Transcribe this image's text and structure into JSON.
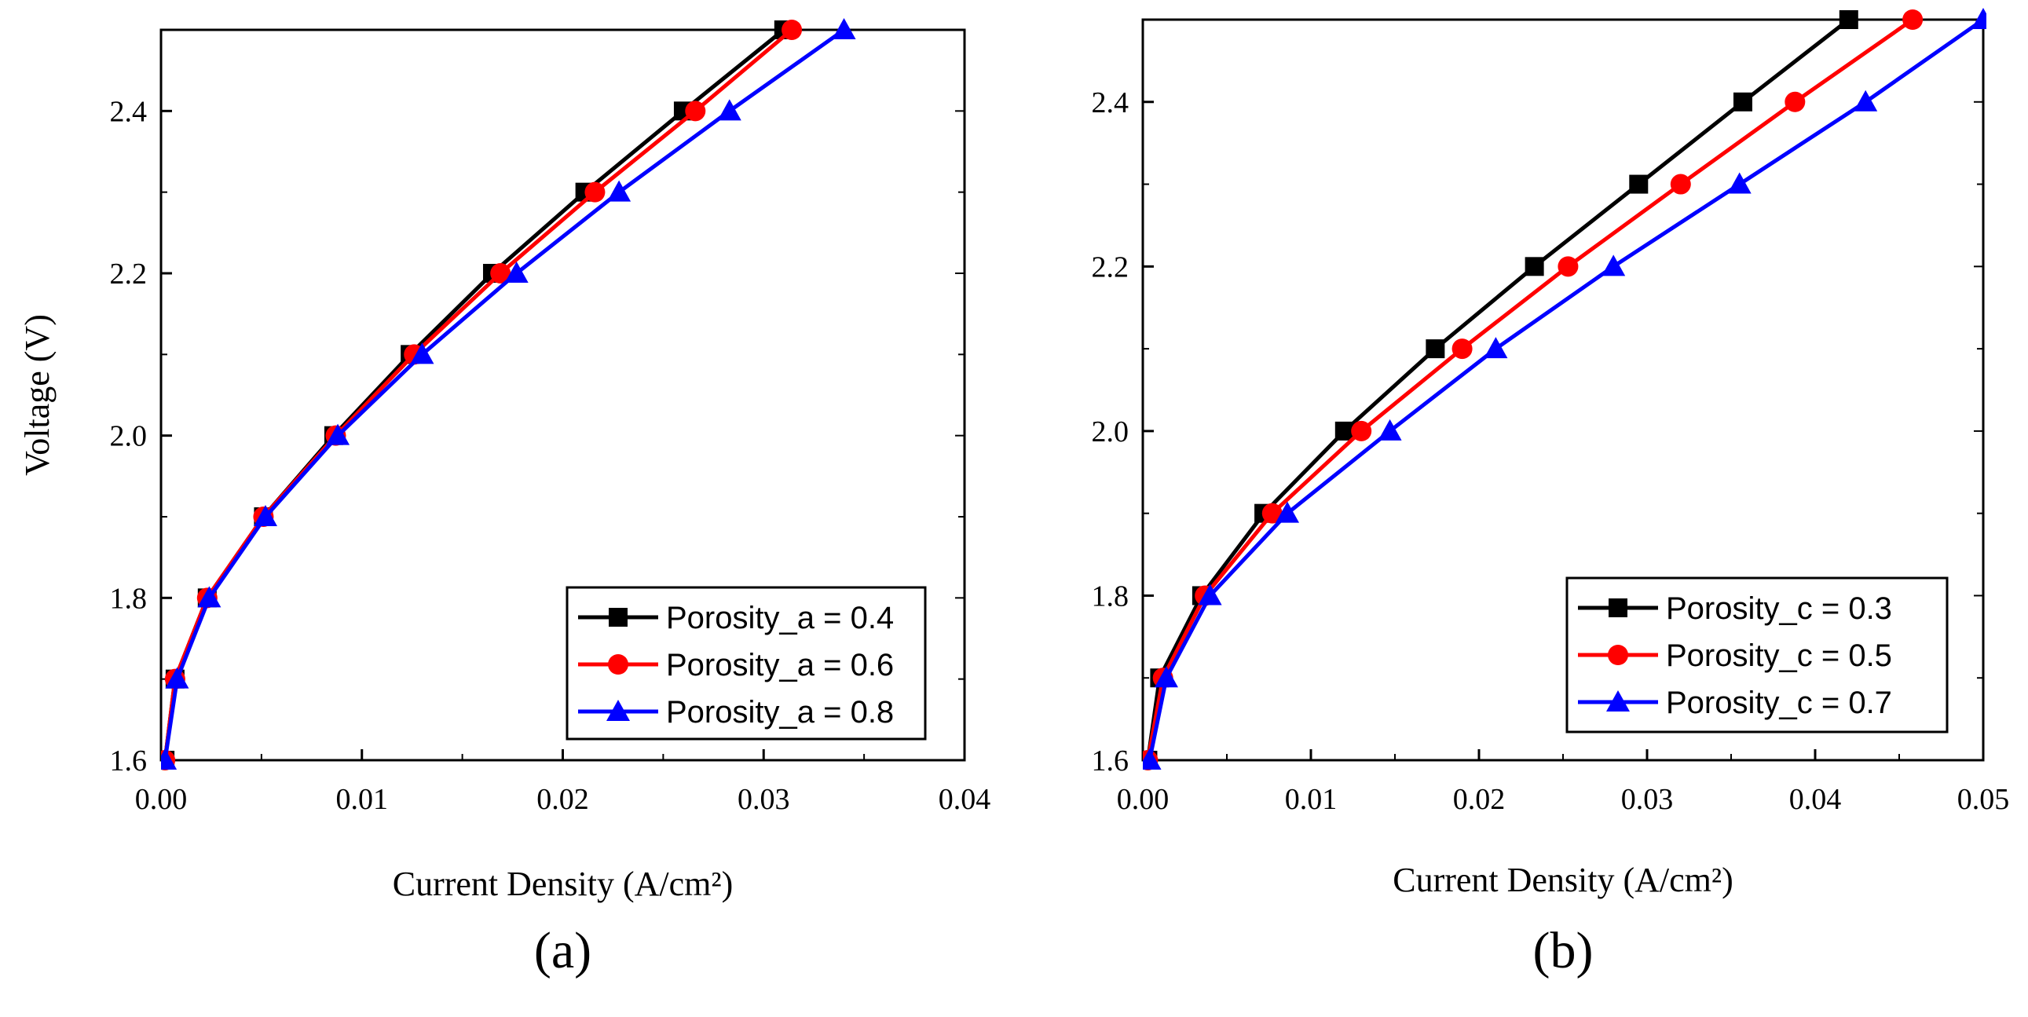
{
  "chart_data": [
    {
      "type": "line",
      "panel_label": "(a)",
      "title": "",
      "xlabel": "Current Density (A/cm²)",
      "ylabel": "Voltage (V)",
      "xlim": [
        0.0,
        0.04
      ],
      "ylim": [
        1.6,
        2.5
      ],
      "xticks": [
        0.0,
        0.01,
        0.02,
        0.03,
        0.04
      ],
      "xtick_labels": [
        "0.00",
        "0.01",
        "0.02",
        "0.03",
        "0.04"
      ],
      "yticks": [
        1.6,
        1.8,
        2.0,
        2.2,
        2.4
      ],
      "ytick_labels": [
        "1.6",
        "1.8",
        "2.0",
        "2.2",
        "2.4"
      ],
      "grid": false,
      "legend_position": "bottom-right",
      "series": [
        {
          "name": "Porosity_a = 0.4",
          "color": "#000000",
          "marker": "square",
          "points": [
            [
              0.0002,
              1.6
            ],
            [
              0.0007,
              1.7
            ],
            [
              0.0023,
              1.8
            ],
            [
              0.0051,
              1.9
            ],
            [
              0.0086,
              2.0
            ],
            [
              0.0124,
              2.1
            ],
            [
              0.0165,
              2.2
            ],
            [
              0.0211,
              2.3
            ],
            [
              0.026,
              2.4
            ],
            [
              0.031,
              2.5
            ]
          ]
        },
        {
          "name": "Porosity_a = 0.6",
          "color": "#ff0000",
          "marker": "circle",
          "points": [
            [
              0.0002,
              1.6
            ],
            [
              0.0007,
              1.7
            ],
            [
              0.0023,
              1.8
            ],
            [
              0.0051,
              1.9
            ],
            [
              0.0087,
              2.0
            ],
            [
              0.0126,
              2.1
            ],
            [
              0.0169,
              2.2
            ],
            [
              0.0216,
              2.3
            ],
            [
              0.0266,
              2.4
            ],
            [
              0.0314,
              2.5
            ]
          ]
        },
        {
          "name": "Porosity_a = 0.8",
          "color": "#0000ff",
          "marker": "triangle",
          "points": [
            [
              0.0002,
              1.6
            ],
            [
              0.0008,
              1.7
            ],
            [
              0.0024,
              1.8
            ],
            [
              0.0052,
              1.9
            ],
            [
              0.0088,
              2.0
            ],
            [
              0.013,
              2.1
            ],
            [
              0.0177,
              2.2
            ],
            [
              0.0228,
              2.3
            ],
            [
              0.0283,
              2.4
            ],
            [
              0.034,
              2.5
            ]
          ]
        }
      ]
    },
    {
      "type": "line",
      "panel_label": "(b)",
      "title": "",
      "xlabel": "Current Density (A/cm²)",
      "ylabel": "",
      "xlim": [
        0.0,
        0.05
      ],
      "ylim": [
        1.6,
        2.5
      ],
      "xticks": [
        0.0,
        0.01,
        0.02,
        0.03,
        0.04,
        0.05
      ],
      "xtick_labels": [
        "0.00",
        "0.01",
        "0.02",
        "0.03",
        "0.04",
        "0.05"
      ],
      "yticks": [
        1.6,
        1.8,
        2.0,
        2.2,
        2.4
      ],
      "ytick_labels": [
        "1.6",
        "1.8",
        "2.0",
        "2.2",
        "2.4"
      ],
      "grid": false,
      "legend_position": "bottom-right",
      "series": [
        {
          "name": "Porosity_c = 0.3",
          "color": "#000000",
          "marker": "square",
          "points": [
            [
              0.0003,
              1.6
            ],
            [
              0.001,
              1.7
            ],
            [
              0.0035,
              1.8
            ],
            [
              0.0072,
              1.9
            ],
            [
              0.012,
              2.0
            ],
            [
              0.0174,
              2.1
            ],
            [
              0.0233,
              2.2
            ],
            [
              0.0295,
              2.3
            ],
            [
              0.0357,
              2.4
            ],
            [
              0.042,
              2.5
            ]
          ]
        },
        {
          "name": "Porosity_c = 0.5",
          "color": "#ff0000",
          "marker": "circle",
          "points": [
            [
              0.0003,
              1.6
            ],
            [
              0.0012,
              1.7
            ],
            [
              0.0037,
              1.8
            ],
            [
              0.0077,
              1.9
            ],
            [
              0.013,
              2.0
            ],
            [
              0.019,
              2.1
            ],
            [
              0.0253,
              2.2
            ],
            [
              0.032,
              2.3
            ],
            [
              0.0388,
              2.4
            ],
            [
              0.0458,
              2.5
            ]
          ]
        },
        {
          "name": "Porosity_c = 0.7",
          "color": "#0000ff",
          "marker": "triangle",
          "points": [
            [
              0.0004,
              1.6
            ],
            [
              0.0014,
              1.7
            ],
            [
              0.004,
              1.8
            ],
            [
              0.0086,
              1.9
            ],
            [
              0.0147,
              2.0
            ],
            [
              0.021,
              2.1
            ],
            [
              0.028,
              2.2
            ],
            [
              0.0355,
              2.3
            ],
            [
              0.043,
              2.4
            ],
            [
              0.05,
              2.5
            ]
          ]
        }
      ]
    }
  ]
}
